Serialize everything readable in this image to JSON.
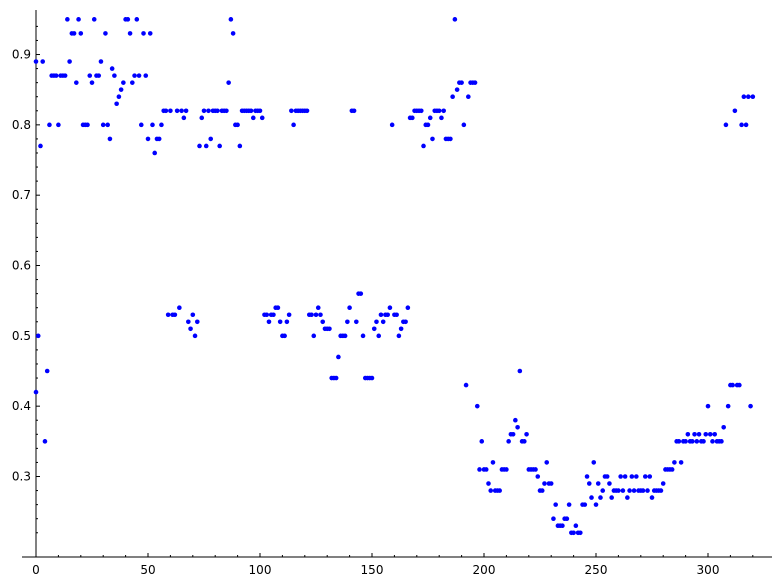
{
  "chart_data": {
    "type": "scatter",
    "title": "",
    "xlabel": "",
    "ylabel": "",
    "xlim": [
      -6,
      328
    ],
    "ylim": [
      0.205,
      0.965
    ],
    "x_ticks": [
      0,
      50,
      100,
      150,
      200,
      250,
      300
    ],
    "y_ticks": [
      0.3,
      0.4,
      0.5,
      0.6,
      0.7,
      0.8,
      0.9
    ],
    "x_tick_labels": [
      "0",
      "50",
      "100",
      "150",
      "200",
      "250",
      "300"
    ],
    "y_tick_labels": [
      "0.3",
      "0.4",
      "0.5",
      "0.6",
      "0.7",
      "0.8",
      "0.9"
    ],
    "grid": false,
    "legend": "none",
    "marker_color": "#0000ff",
    "series": [
      {
        "points": [
          [
            0,
            0.89
          ],
          [
            0,
            0.42
          ],
          [
            1,
            0.5
          ],
          [
            2,
            0.77
          ],
          [
            3,
            0.89
          ],
          [
            4,
            0.35
          ],
          [
            5,
            0.45
          ],
          [
            6,
            0.8
          ],
          [
            7,
            0.87
          ],
          [
            8,
            0.87
          ],
          [
            9,
            0.87
          ],
          [
            10,
            0.8
          ],
          [
            11,
            0.87
          ],
          [
            12,
            0.87
          ],
          [
            13,
            0.87
          ],
          [
            14,
            0.95
          ],
          [
            15,
            0.89
          ],
          [
            16,
            0.93
          ],
          [
            17,
            0.93
          ],
          [
            18,
            0.86
          ],
          [
            19,
            0.95
          ],
          [
            20,
            0.93
          ],
          [
            21,
            0.8
          ],
          [
            22,
            0.8
          ],
          [
            23,
            0.8
          ],
          [
            24,
            0.87
          ],
          [
            25,
            0.86
          ],
          [
            26,
            0.95
          ],
          [
            27,
            0.87
          ],
          [
            28,
            0.87
          ],
          [
            29,
            0.89
          ],
          [
            30,
            0.8
          ],
          [
            31,
            0.93
          ],
          [
            32,
            0.8
          ],
          [
            33,
            0.78
          ],
          [
            34,
            0.88
          ],
          [
            35,
            0.87
          ],
          [
            36,
            0.83
          ],
          [
            37,
            0.84
          ],
          [
            38,
            0.85
          ],
          [
            39,
            0.86
          ],
          [
            40,
            0.95
          ],
          [
            41,
            0.95
          ],
          [
            42,
            0.93
          ],
          [
            43,
            0.86
          ],
          [
            44,
            0.87
          ],
          [
            45,
            0.95
          ],
          [
            46,
            0.87
          ],
          [
            47,
            0.8
          ],
          [
            48,
            0.93
          ],
          [
            49,
            0.87
          ],
          [
            50,
            0.78
          ],
          [
            51,
            0.93
          ],
          [
            52,
            0.8
          ],
          [
            53,
            0.76
          ],
          [
            54,
            0.78
          ],
          [
            55,
            0.78
          ],
          [
            56,
            0.8
          ],
          [
            57,
            0.82
          ],
          [
            58,
            0.82
          ],
          [
            59,
            0.53
          ],
          [
            60,
            0.82
          ],
          [
            61,
            0.53
          ],
          [
            62,
            0.53
          ],
          [
            63,
            0.82
          ],
          [
            64,
            0.54
          ],
          [
            65,
            0.82
          ],
          [
            66,
            0.81
          ],
          [
            67,
            0.82
          ],
          [
            68,
            0.52
          ],
          [
            69,
            0.51
          ],
          [
            70,
            0.53
          ],
          [
            71,
            0.5
          ],
          [
            72,
            0.52
          ],
          [
            73,
            0.77
          ],
          [
            74,
            0.81
          ],
          [
            75,
            0.82
          ],
          [
            76,
            0.77
          ],
          [
            77,
            0.82
          ],
          [
            78,
            0.78
          ],
          [
            79,
            0.82
          ],
          [
            80,
            0.82
          ],
          [
            81,
            0.82
          ],
          [
            82,
            0.77
          ],
          [
            83,
            0.82
          ],
          [
            84,
            0.82
          ],
          [
            85,
            0.82
          ],
          [
            86,
            0.86
          ],
          [
            87,
            0.95
          ],
          [
            88,
            0.93
          ],
          [
            89,
            0.8
          ],
          [
            90,
            0.8
          ],
          [
            91,
            0.77
          ],
          [
            92,
            0.82
          ],
          [
            93,
            0.82
          ],
          [
            94,
            0.82
          ],
          [
            95,
            0.82
          ],
          [
            96,
            0.82
          ],
          [
            97,
            0.81
          ],
          [
            98,
            0.82
          ],
          [
            99,
            0.82
          ],
          [
            100,
            0.82
          ],
          [
            101,
            0.81
          ],
          [
            102,
            0.53
          ],
          [
            103,
            0.53
          ],
          [
            104,
            0.52
          ],
          [
            105,
            0.53
          ],
          [
            106,
            0.53
          ],
          [
            107,
            0.54
          ],
          [
            108,
            0.54
          ],
          [
            109,
            0.52
          ],
          [
            110,
            0.5
          ],
          [
            111,
            0.5
          ],
          [
            112,
            0.52
          ],
          [
            113,
            0.53
          ],
          [
            114,
            0.82
          ],
          [
            115,
            0.8
          ],
          [
            116,
            0.82
          ],
          [
            117,
            0.82
          ],
          [
            118,
            0.82
          ],
          [
            119,
            0.82
          ],
          [
            120,
            0.82
          ],
          [
            121,
            0.82
          ],
          [
            122,
            0.53
          ],
          [
            123,
            0.53
          ],
          [
            124,
            0.5
          ],
          [
            125,
            0.53
          ],
          [
            126,
            0.54
          ],
          [
            127,
            0.53
          ],
          [
            128,
            0.52
          ],
          [
            129,
            0.51
          ],
          [
            130,
            0.51
          ],
          [
            131,
            0.51
          ],
          [
            132,
            0.44
          ],
          [
            133,
            0.44
          ],
          [
            134,
            0.44
          ],
          [
            135,
            0.47
          ],
          [
            136,
            0.5
          ],
          [
            137,
            0.5
          ],
          [
            138,
            0.5
          ],
          [
            139,
            0.52
          ],
          [
            140,
            0.54
          ],
          [
            141,
            0.82
          ],
          [
            142,
            0.82
          ],
          [
            143,
            0.52
          ],
          [
            144,
            0.56
          ],
          [
            145,
            0.56
          ],
          [
            146,
            0.5
          ],
          [
            147,
            0.44
          ],
          [
            148,
            0.44
          ],
          [
            149,
            0.44
          ],
          [
            150,
            0.44
          ],
          [
            151,
            0.51
          ],
          [
            152,
            0.52
          ],
          [
            153,
            0.5
          ],
          [
            154,
            0.53
          ],
          [
            155,
            0.52
          ],
          [
            156,
            0.53
          ],
          [
            157,
            0.53
          ],
          [
            158,
            0.54
          ],
          [
            159,
            0.8
          ],
          [
            160,
            0.53
          ],
          [
            161,
            0.53
          ],
          [
            162,
            0.5
          ],
          [
            163,
            0.51
          ],
          [
            164,
            0.52
          ],
          [
            165,
            0.52
          ],
          [
            166,
            0.54
          ],
          [
            167,
            0.81
          ],
          [
            168,
            0.81
          ],
          [
            169,
            0.82
          ],
          [
            170,
            0.82
          ],
          [
            171,
            0.82
          ],
          [
            172,
            0.82
          ],
          [
            173,
            0.77
          ],
          [
            174,
            0.8
          ],
          [
            175,
            0.8
          ],
          [
            176,
            0.81
          ],
          [
            177,
            0.78
          ],
          [
            178,
            0.82
          ],
          [
            179,
            0.82
          ],
          [
            180,
            0.82
          ],
          [
            181,
            0.81
          ],
          [
            182,
            0.82
          ],
          [
            183,
            0.78
          ],
          [
            184,
            0.78
          ],
          [
            185,
            0.78
          ],
          [
            186,
            0.84
          ],
          [
            187,
            0.95
          ],
          [
            188,
            0.85
          ],
          [
            189,
            0.86
          ],
          [
            190,
            0.86
          ],
          [
            191,
            0.8
          ],
          [
            192,
            0.43
          ],
          [
            193,
            0.84
          ],
          [
            194,
            0.86
          ],
          [
            195,
            0.86
          ],
          [
            196,
            0.86
          ],
          [
            197,
            0.4
          ],
          [
            198,
            0.31
          ],
          [
            199,
            0.35
          ],
          [
            200,
            0.31
          ],
          [
            201,
            0.31
          ],
          [
            202,
            0.29
          ],
          [
            203,
            0.28
          ],
          [
            204,
            0.32
          ],
          [
            205,
            0.28
          ],
          [
            206,
            0.28
          ],
          [
            207,
            0.28
          ],
          [
            208,
            0.31
          ],
          [
            209,
            0.31
          ],
          [
            210,
            0.31
          ],
          [
            211,
            0.35
          ],
          [
            212,
            0.36
          ],
          [
            213,
            0.36
          ],
          [
            214,
            0.38
          ],
          [
            215,
            0.37
          ],
          [
            216,
            0.45
          ],
          [
            217,
            0.35
          ],
          [
            218,
            0.35
          ],
          [
            219,
            0.36
          ],
          [
            220,
            0.31
          ],
          [
            221,
            0.31
          ],
          [
            222,
            0.31
          ],
          [
            223,
            0.31
          ],
          [
            224,
            0.3
          ],
          [
            225,
            0.28
          ],
          [
            226,
            0.28
          ],
          [
            227,
            0.29
          ],
          [
            228,
            0.32
          ],
          [
            229,
            0.29
          ],
          [
            230,
            0.29
          ],
          [
            231,
            0.24
          ],
          [
            232,
            0.26
          ],
          [
            233,
            0.23
          ],
          [
            234,
            0.23
          ],
          [
            235,
            0.23
          ],
          [
            236,
            0.24
          ],
          [
            237,
            0.24
          ],
          [
            238,
            0.26
          ],
          [
            239,
            0.22
          ],
          [
            240,
            0.22
          ],
          [
            241,
            0.23
          ],
          [
            242,
            0.22
          ],
          [
            243,
            0.22
          ],
          [
            244,
            0.26
          ],
          [
            245,
            0.26
          ],
          [
            246,
            0.3
          ],
          [
            247,
            0.29
          ],
          [
            248,
            0.27
          ],
          [
            249,
            0.32
          ],
          [
            250,
            0.26
          ],
          [
            251,
            0.29
          ],
          [
            252,
            0.27
          ],
          [
            253,
            0.28
          ],
          [
            254,
            0.3
          ],
          [
            255,
            0.3
          ],
          [
            256,
            0.29
          ],
          [
            257,
            0.27
          ],
          [
            258,
            0.28
          ],
          [
            259,
            0.28
          ],
          [
            260,
            0.28
          ],
          [
            261,
            0.3
          ],
          [
            262,
            0.28
          ],
          [
            263,
            0.3
          ],
          [
            264,
            0.27
          ],
          [
            265,
            0.28
          ],
          [
            266,
            0.3
          ],
          [
            267,
            0.28
          ],
          [
            268,
            0.3
          ],
          [
            269,
            0.28
          ],
          [
            270,
            0.28
          ],
          [
            271,
            0.28
          ],
          [
            272,
            0.3
          ],
          [
            273,
            0.28
          ],
          [
            274,
            0.3
          ],
          [
            275,
            0.27
          ],
          [
            276,
            0.28
          ],
          [
            277,
            0.28
          ],
          [
            278,
            0.28
          ],
          [
            279,
            0.28
          ],
          [
            280,
            0.29
          ],
          [
            281,
            0.31
          ],
          [
            282,
            0.31
          ],
          [
            283,
            0.31
          ],
          [
            284,
            0.31
          ],
          [
            285,
            0.32
          ],
          [
            286,
            0.35
          ],
          [
            287,
            0.35
          ],
          [
            288,
            0.32
          ],
          [
            289,
            0.35
          ],
          [
            290,
            0.35
          ],
          [
            291,
            0.36
          ],
          [
            292,
            0.35
          ],
          [
            293,
            0.35
          ],
          [
            294,
            0.36
          ],
          [
            295,
            0.35
          ],
          [
            296,
            0.36
          ],
          [
            297,
            0.35
          ],
          [
            298,
            0.35
          ],
          [
            299,
            0.36
          ],
          [
            300,
            0.4
          ],
          [
            301,
            0.36
          ],
          [
            302,
            0.35
          ],
          [
            303,
            0.36
          ],
          [
            304,
            0.35
          ],
          [
            305,
            0.35
          ],
          [
            306,
            0.35
          ],
          [
            307,
            0.37
          ],
          [
            308,
            0.8
          ],
          [
            309,
            0.4
          ],
          [
            310,
            0.43
          ],
          [
            311,
            0.43
          ],
          [
            312,
            0.82
          ],
          [
            313,
            0.43
          ],
          [
            314,
            0.43
          ],
          [
            315,
            0.8
          ],
          [
            316,
            0.84
          ],
          [
            317,
            0.8
          ],
          [
            318,
            0.84
          ],
          [
            319,
            0.4
          ],
          [
            320,
            0.84
          ]
        ]
      }
    ]
  }
}
